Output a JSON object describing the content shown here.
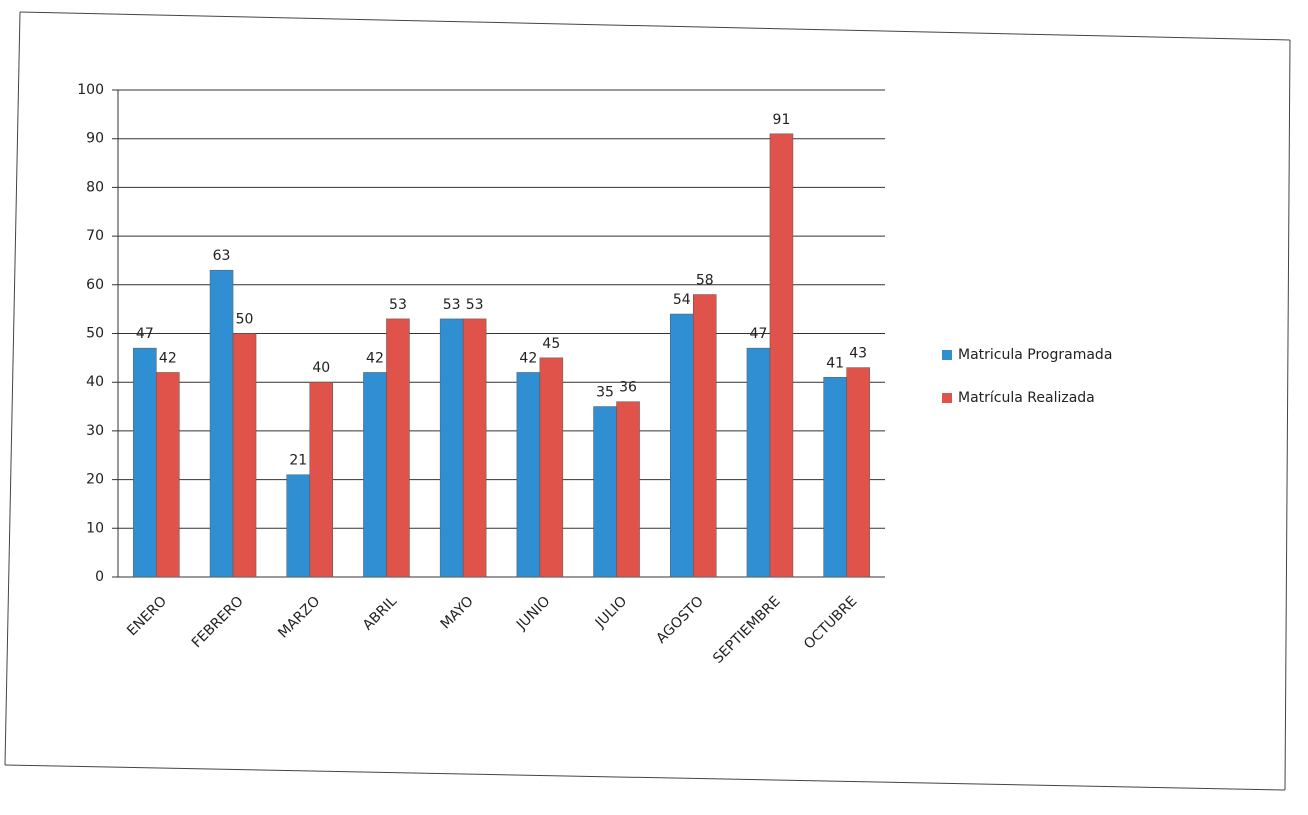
{
  "chart_data": {
    "type": "bar",
    "categories": [
      "ENERO",
      "FEBRERO",
      "MARZO",
      "ABRIL",
      "MAYO",
      "JUNIO",
      "JULIO",
      "AGOSTO",
      "SEPTIEMBRE",
      "OCTUBRE"
    ],
    "series": [
      {
        "name": "Matricula Programada",
        "color": "#2f8fd2",
        "values": [
          47,
          63,
          21,
          42,
          53,
          42,
          35,
          54,
          47,
          41
        ]
      },
      {
        "name": "Matrícula Realizada",
        "color": "#e0534a",
        "values": [
          42,
          50,
          40,
          53,
          53,
          45,
          36,
          58,
          91,
          43
        ]
      }
    ],
    "ylim": [
      0,
      100
    ],
    "yticks": [
      0,
      10,
      20,
      30,
      40,
      50,
      60,
      70,
      80,
      90,
      100
    ],
    "grid": true,
    "legend": "right"
  }
}
